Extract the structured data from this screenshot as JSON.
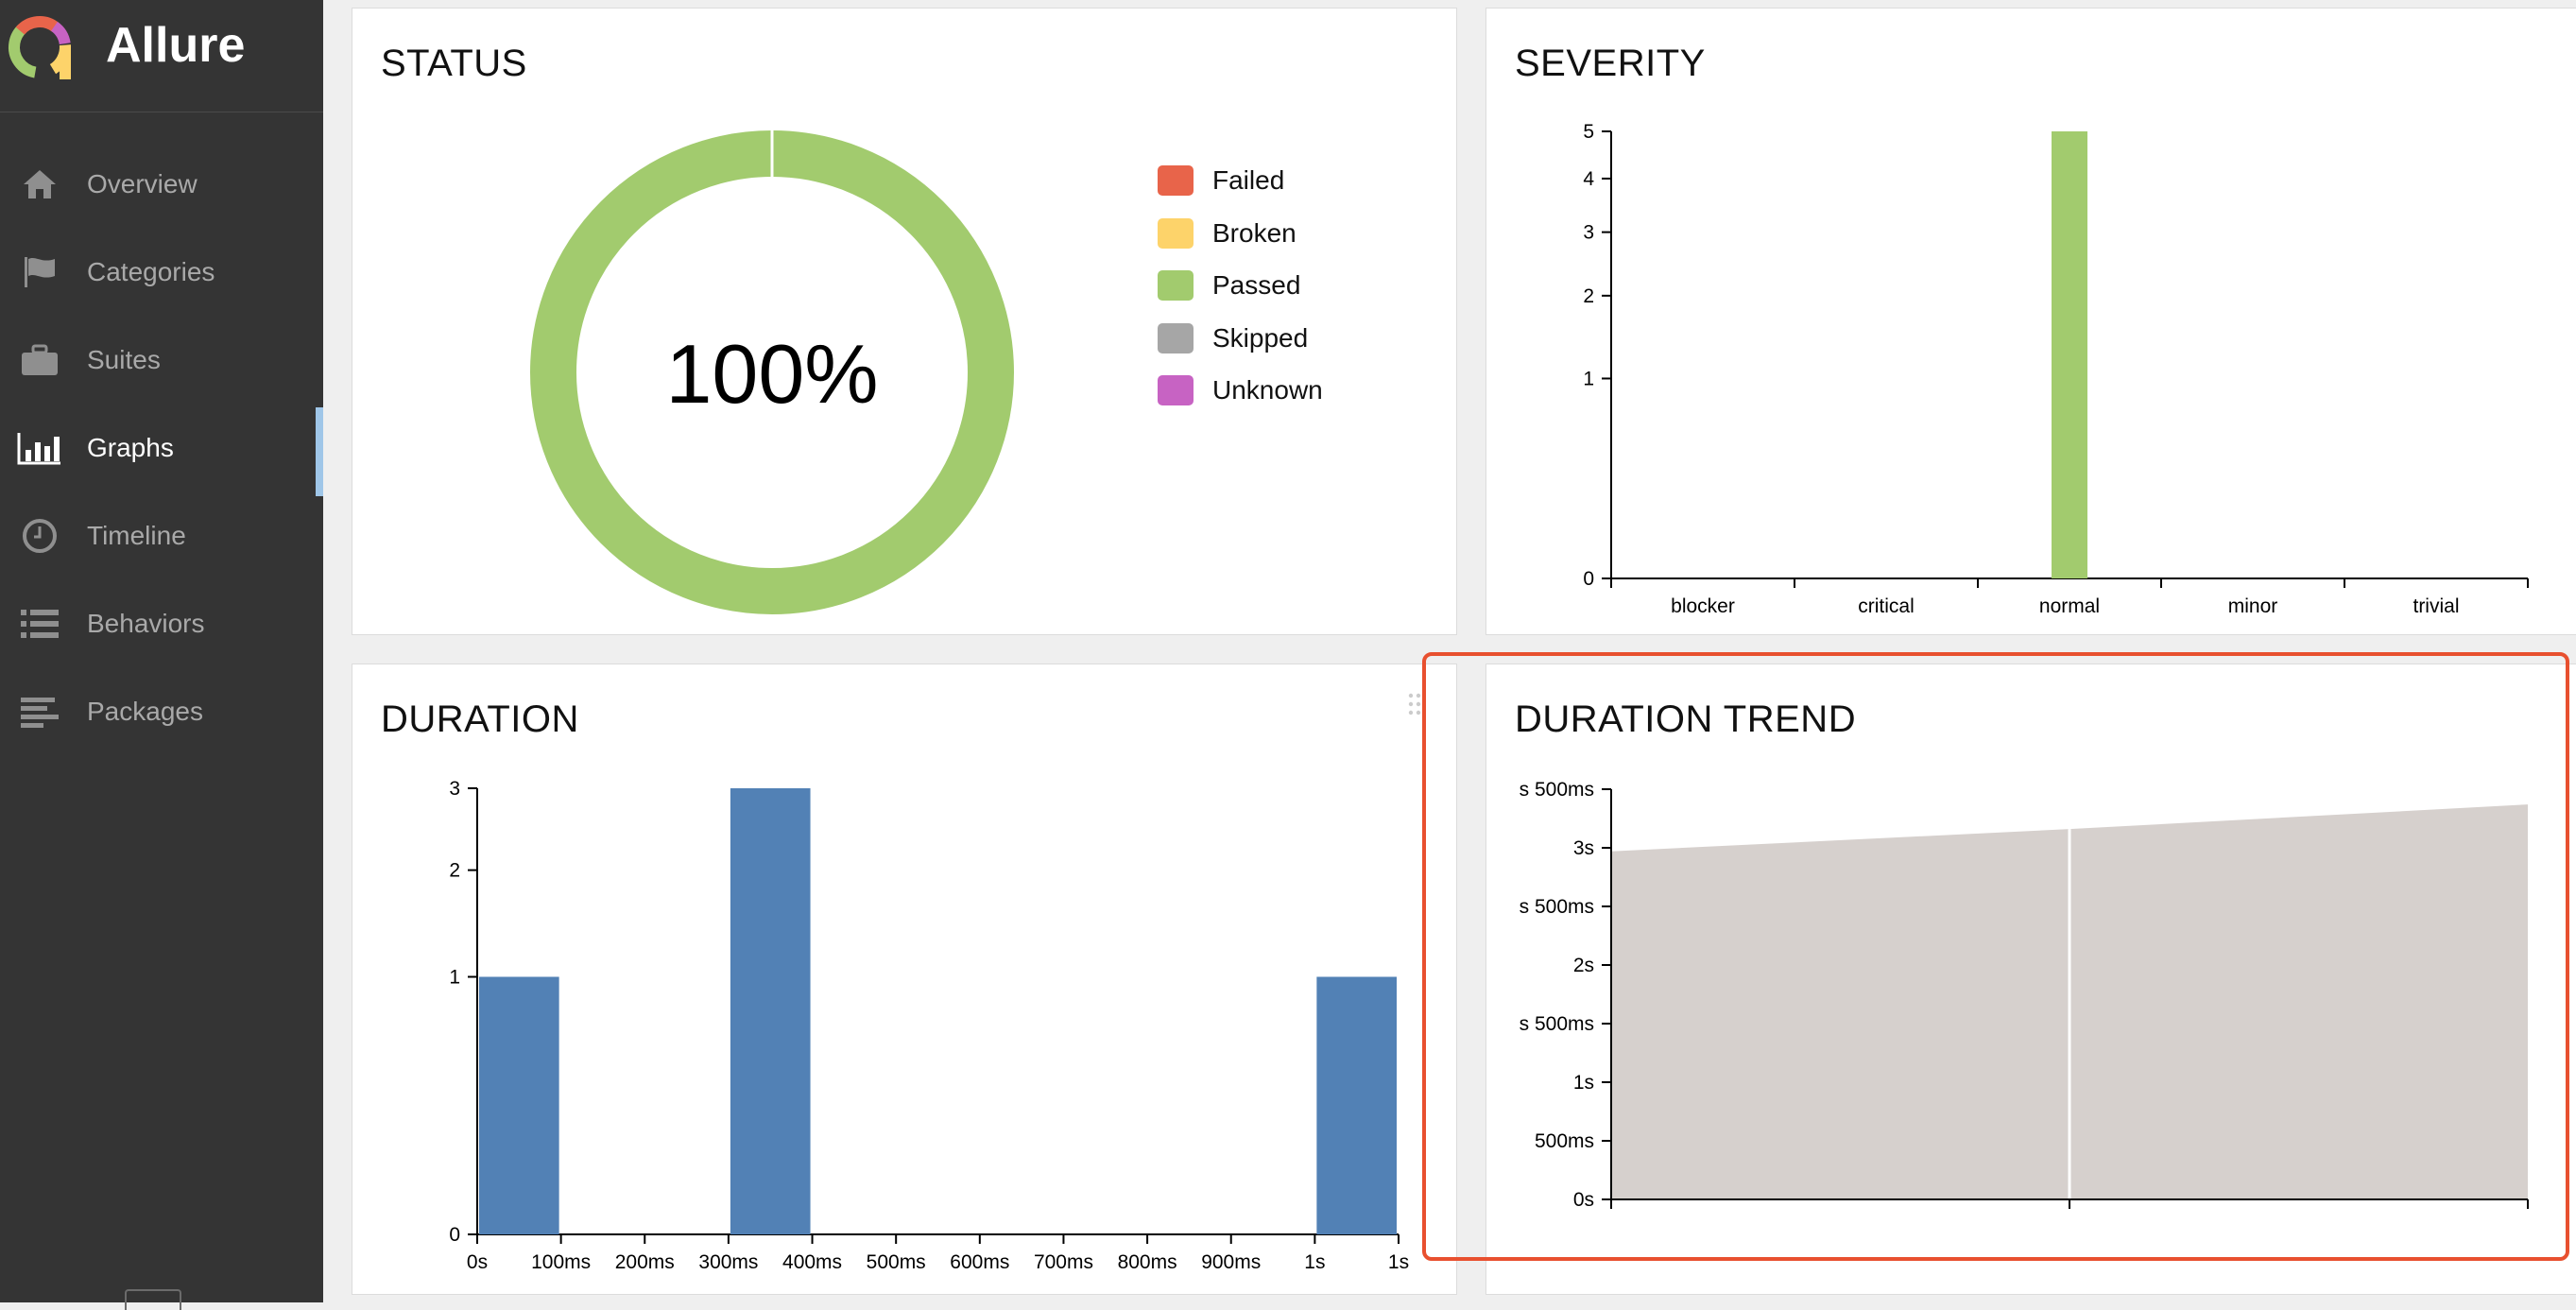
{
  "app": {
    "name": "Allure"
  },
  "nav": {
    "items": [
      {
        "label": "Overview",
        "icon": "home-icon"
      },
      {
        "label": "Categories",
        "icon": "flag-icon"
      },
      {
        "label": "Suites",
        "icon": "briefcase-icon"
      },
      {
        "label": "Graphs",
        "icon": "bar-chart-icon",
        "active": true
      },
      {
        "label": "Timeline",
        "icon": "clock-icon"
      },
      {
        "label": "Behaviors",
        "icon": "list-icon"
      },
      {
        "label": "Packages",
        "icon": "align-left-icon"
      }
    ]
  },
  "colors": {
    "failed": "#e8644a",
    "broken": "#fdd36a",
    "passed": "#a2cb6e",
    "skipped": "#a6a6a6",
    "unknown": "#c763c3",
    "duration_bar": "#5281b5",
    "trend_area": "#d6d0cd",
    "highlight": "#e8502f"
  },
  "widgets": {
    "status": {
      "title": "STATUS",
      "center_label": "100%",
      "legend": [
        "Failed",
        "Broken",
        "Passed",
        "Skipped",
        "Unknown"
      ]
    },
    "severity": {
      "title": "SEVERITY"
    },
    "duration": {
      "title": "DURATION"
    },
    "duration_trend": {
      "title": "DURATION TREND"
    }
  },
  "chart_data": [
    {
      "type": "pie",
      "title": "STATUS",
      "categories": [
        "Failed",
        "Broken",
        "Passed",
        "Skipped",
        "Unknown"
      ],
      "values": [
        0,
        0,
        5,
        0,
        0
      ]
    },
    {
      "type": "bar",
      "title": "SEVERITY",
      "categories": [
        "blocker",
        "critical",
        "normal",
        "minor",
        "trivial"
      ],
      "values": [
        0,
        0,
        5,
        0,
        0
      ],
      "yticks": [
        "0",
        "1",
        "2",
        "3",
        "4",
        "5"
      ],
      "y_scale": "sqrt",
      "ylim": [
        0,
        5
      ]
    },
    {
      "type": "bar",
      "title": "DURATION",
      "xticks": [
        "0s",
        "100ms",
        "200ms",
        "300ms",
        "400ms",
        "500ms",
        "600ms",
        "700ms",
        "800ms",
        "900ms",
        "1s",
        "1s"
      ],
      "bins": [
        {
          "x0": 0,
          "x1": 100,
          "count": 1
        },
        {
          "x0": 300,
          "x1": 400,
          "count": 3
        },
        {
          "x0": 1000,
          "x1": 1100,
          "count": 1
        }
      ],
      "xlim": [
        0,
        1100
      ],
      "yticks": [
        "0",
        "1",
        "2",
        "3"
      ],
      "y_scale": "sqrt",
      "ylim": [
        0,
        3
      ]
    },
    {
      "type": "area",
      "title": "DURATION TREND",
      "x": [
        0,
        1,
        2
      ],
      "values_ms": [
        2970,
        3160,
        3370
      ],
      "yticks": [
        "0s",
        "500ms",
        "1s",
        "s 500ms",
        "2s",
        "s 500ms",
        "3s",
        "s 500ms"
      ],
      "ylim": [
        0,
        3500
      ]
    }
  ]
}
